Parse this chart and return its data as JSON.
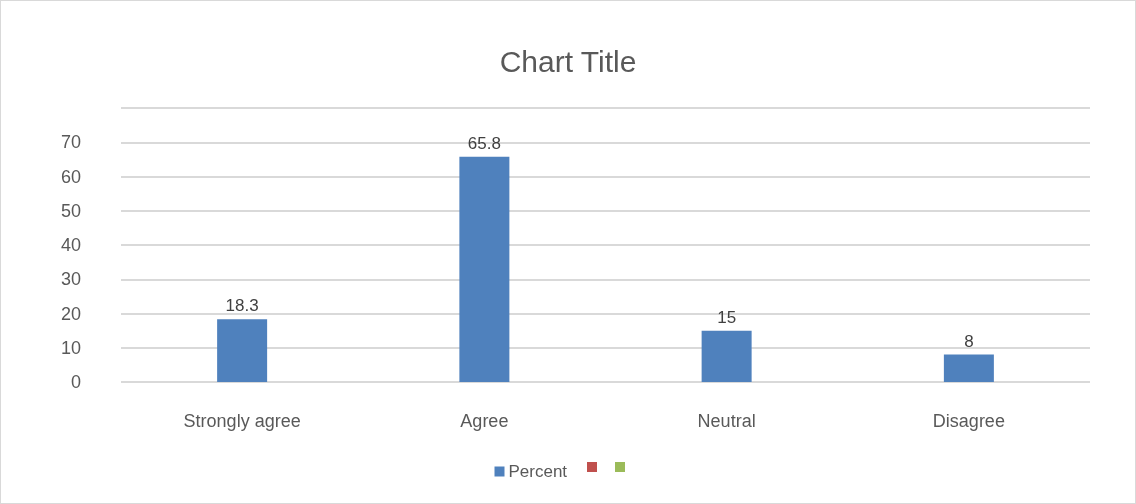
{
  "chart_data": {
    "type": "bar",
    "title": "Chart Title",
    "categories": [
      "Strongly agree",
      "Agree",
      "Neutral",
      "Disagree"
    ],
    "series": [
      {
        "name": "Percent",
        "color": "#4f81bd",
        "values": [
          18.3,
          65.8,
          15,
          8
        ]
      },
      {
        "color": "#c0504d",
        "values": [
          null,
          null,
          null,
          null
        ]
      },
      {
        "color": "#9bbb59",
        "values": [
          null,
          null,
          null,
          null
        ]
      }
    ],
    "ylim": [
      0,
      80
    ],
    "yticks": [
      0,
      10,
      20,
      30,
      40,
      50,
      60,
      70,
      {
        "value": 80,
        "label": null
      }
    ],
    "grid": true,
    "data_labels": true,
    "legend": "bottom"
  }
}
